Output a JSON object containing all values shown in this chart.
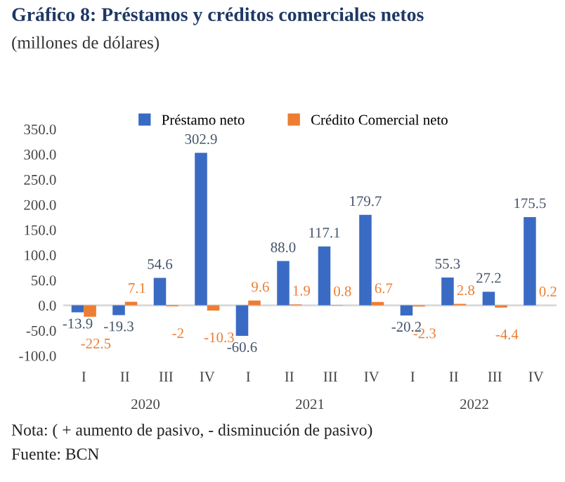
{
  "chart_data": {
    "type": "bar",
    "title": "Gráfico 8: Préstamos y créditos comerciales netos",
    "subtitle": "(millones de dólares)",
    "categories": [
      "I",
      "II",
      "III",
      "IV",
      "I",
      "II",
      "III",
      "IV",
      "I",
      "II",
      "III",
      "IV"
    ],
    "series": [
      {
        "name": "Préstamo neto",
        "color": "#3a6bc4",
        "values": [
          -13.9,
          -19.3,
          54.6,
          302.9,
          -60.6,
          88.0,
          117.1,
          179.7,
          -20.2,
          55.3,
          27.2,
          175.5
        ],
        "value_labels": [
          "-13.9",
          "-19.3",
          "54.6",
          "302.9",
          "-60.6",
          "88.0",
          "117.1",
          "179.7",
          "-20.2",
          "55.3",
          "27.2",
          "175.5"
        ]
      },
      {
        "name": "Crédito Comercial neto",
        "color": "#ed7d31",
        "values": [
          -22.5,
          7.1,
          -2,
          -10.3,
          9.6,
          1.9,
          0.8,
          6.7,
          -2.3,
          2.8,
          -4.4,
          0.2
        ],
        "value_labels": [
          "-22.5",
          "7.1",
          "-2",
          "-10.3",
          "9.6",
          "1.9",
          "0.8",
          "6.7",
          "-2.3",
          "2.8",
          "-4.4",
          "0.2"
        ]
      }
    ],
    "ylim": [
      -100,
      350
    ],
    "yticks": [
      {
        "value": -100,
        "label": "-100.0"
      },
      {
        "value": -50,
        "label": "-50.0"
      },
      {
        "value": 0,
        "label": "0.0"
      },
      {
        "value": 50,
        "label": "50.0"
      },
      {
        "value": 100,
        "label": "100.0"
      },
      {
        "value": 150,
        "label": "150.0"
      },
      {
        "value": 200,
        "label": "200.0"
      },
      {
        "value": 250,
        "label": "250.0"
      },
      {
        "value": 300,
        "label": "300.0"
      },
      {
        "value": 350,
        "label": "350.0"
      }
    ],
    "ref_lines": [
      {
        "axis": "y",
        "value": 0,
        "color": "#d9d9d9"
      }
    ],
    "legend": "top",
    "annotations": [
      "2020",
      "2021",
      "2022",
      "Nota: ( + aumento de pasivo, - disminución de pasivo)",
      "Fuente: BCN"
    ]
  }
}
